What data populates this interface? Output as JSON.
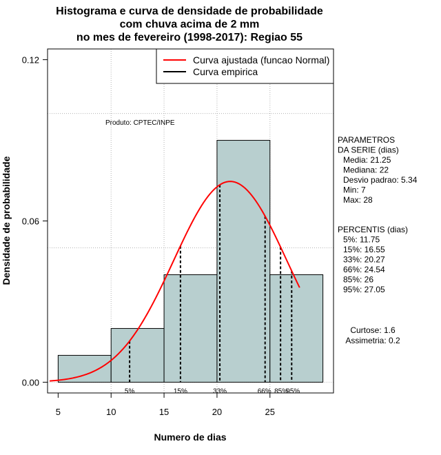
{
  "chart_data": {
    "type": "histogram",
    "title_lines": [
      "Histograma e curva de densidade de probabilidade",
      "com chuva acima de 2 mm",
      "no mes de fevereiro (1998-2017): Regiao 55"
    ],
    "xlabel": "Numero de dias",
    "ylabel": "Densidade de probabilidade",
    "xlim": [
      4,
      31
    ],
    "ylim": [
      -0.004,
      0.124
    ],
    "x_ticks": [
      5,
      10,
      15,
      20,
      25
    ],
    "y_ticks": [
      0.0,
      0.06,
      0.12
    ],
    "y_tick_labels": [
      "0.00",
      "0.06",
      "0.12"
    ],
    "grid_x": [
      10,
      15,
      20,
      25
    ],
    "grid_y": [
      0.0,
      0.05,
      0.1
    ],
    "bins": [
      {
        "from": 5,
        "to": 10,
        "density": 0.01
      },
      {
        "from": 10,
        "to": 15,
        "density": 0.02
      },
      {
        "from": 15,
        "to": 20,
        "density": 0.04
      },
      {
        "from": 20,
        "to": 25,
        "density": 0.09
      },
      {
        "from": 25,
        "to": 30,
        "density": 0.04
      }
    ],
    "fitted_curve": {
      "name": "Curva ajustada (funcao Normal)",
      "mean": 21.25,
      "sd": 5.34,
      "x_from": 4.2,
      "x_to": 27.8,
      "color": "#ff0000"
    },
    "empirical_curve": {
      "name": "Curva empirica",
      "color": "#000000"
    },
    "legend": [
      {
        "label": "Curva ajustada (funcao Normal)",
        "color": "#ff0000"
      },
      {
        "label": "Curva empirica",
        "color": "#000000"
      }
    ],
    "legend_position": "top-right",
    "percentile_markers": [
      {
        "label": "5%",
        "x": 11.75
      },
      {
        "label": "15%",
        "x": 16.55
      },
      {
        "label": "33%",
        "x": 20.27
      },
      {
        "label": "66%",
        "x": 24.54
      },
      {
        "label": "85%",
        "x": 26
      },
      {
        "label": "95%",
        "x": 27.05
      }
    ],
    "product_note": "Produto: CPTEC/INPE",
    "bar_color": "#b8cfcf"
  },
  "parametros": {
    "heading": [
      "PARAMETROS",
      "DA SERIE (dias)"
    ],
    "lines": [
      "Media: 21.25",
      "Mediana: 22",
      "Desvio padrao: 5.34",
      "Min: 7",
      "Max: 28"
    ]
  },
  "percentis": {
    "heading": "PERCENTIS (dias)",
    "lines": [
      "5%: 11.75",
      "15%: 16.55",
      "33%: 20.27",
      "66%: 24.54",
      "85%: 26",
      "95%: 27.05"
    ]
  },
  "stats": {
    "lines": [
      "Curtose: 1.6",
      "Assimetria: 0.2"
    ]
  }
}
